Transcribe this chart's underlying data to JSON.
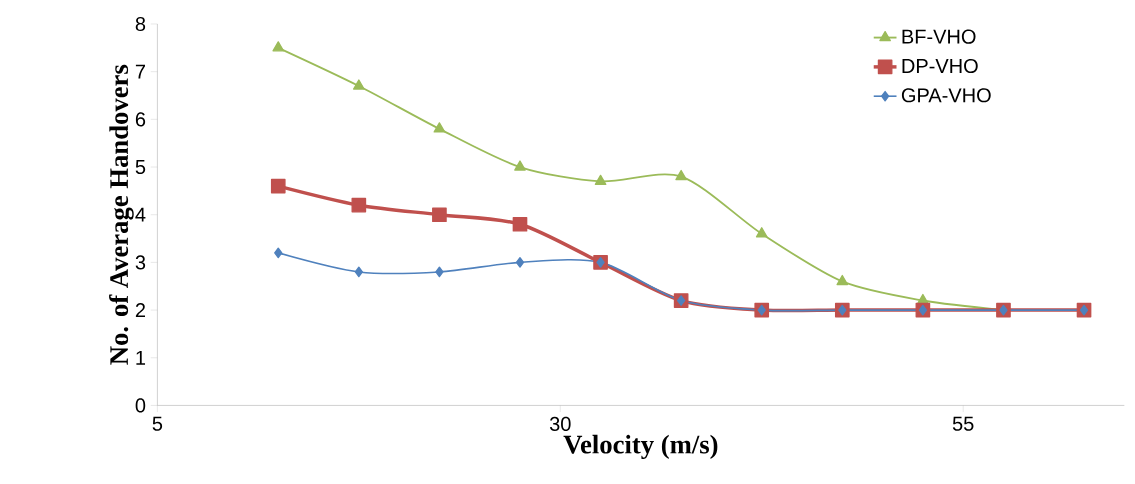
{
  "chart_data": {
    "type": "line",
    "xlabel": "Velocity (m/s)",
    "ylabel": "No. of Average Handovers",
    "x": [
      12.5,
      17.5,
      22.5,
      27.5,
      32.5,
      37.5,
      42.5,
      47.5,
      52.5,
      57.5,
      62.5
    ],
    "xlim": [
      5,
      65
    ],
    "xticks": [
      5,
      30,
      55
    ],
    "ylim": [
      0,
      8
    ],
    "yticks": [
      0,
      1,
      2,
      3,
      4,
      5,
      6,
      7,
      8
    ],
    "grid": false,
    "legend": "top right",
    "series": [
      {
        "name": "BF-VHO",
        "color": "#9bbb59",
        "marker": "triangle",
        "values": [
          7.5,
          6.7,
          5.8,
          5.0,
          4.7,
          4.8,
          3.6,
          2.6,
          2.2,
          2.0,
          null
        ]
      },
      {
        "name": "DP-VHO",
        "color": "#c0504d",
        "marker": "square",
        "values": [
          4.6,
          4.2,
          4.0,
          3.8,
          3.0,
          2.2,
          2.0,
          2.0,
          2.0,
          2.0,
          2.0
        ]
      },
      {
        "name": "GPA-VHO",
        "color": "#4f81bd",
        "marker": "diamond",
        "values": [
          3.2,
          2.8,
          2.8,
          3.0,
          3.0,
          2.2,
          2.0,
          2.0,
          2.0,
          2.0,
          2.0
        ]
      }
    ]
  }
}
